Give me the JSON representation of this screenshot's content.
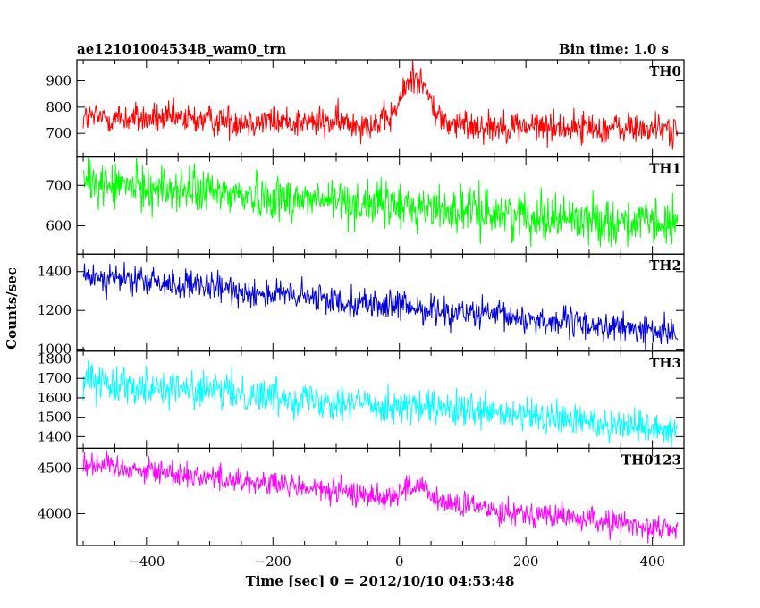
{
  "title_left": "ae121010045348_wam0_trn",
  "title_right": "Bin time: 1.0 s",
  "ylabel": "Counts/sec",
  "xlabel": "Time [sec] 0 = 2012/10/10 04:53:48",
  "chart_data": {
    "type": "line",
    "x_range": [
      -510,
      450
    ],
    "x_ticks": [
      -400,
      -200,
      0,
      200,
      400
    ],
    "x_tick_labels": [
      "−400",
      "−200",
      "0",
      "200",
      "400"
    ],
    "x_data_range": [
      -500,
      440
    ],
    "bin_time_s": 1.0,
    "panels": [
      {
        "name": "TH0",
        "color": "#ff0000",
        "ylim": [
          610,
          980
        ],
        "y_ticks": [
          700,
          800,
          900
        ],
        "y_tick_labels": [
          "700",
          "800",
          "900"
        ],
        "baseline_start": 760,
        "baseline_end": 715,
        "noise": 30,
        "burst": {
          "center": 25,
          "width": 28,
          "peak": 920
        }
      },
      {
        "name": "TH1",
        "color": "#00ff00",
        "ylim": [
          530,
          770
        ],
        "y_ticks": [
          600,
          700
        ],
        "y_tick_labels": [
          "600",
          "700"
        ],
        "baseline_start": 705,
        "baseline_end": 600,
        "noise": 28,
        "burst": null
      },
      {
        "name": "TH2",
        "color": "#0000dd",
        "ylim": [
          990,
          1490
        ],
        "y_ticks": [
          1000,
          1200,
          1400
        ],
        "y_tick_labels": [
          "1000",
          "1200",
          "1400"
        ],
        "baseline_start": 1380,
        "baseline_end": 1080,
        "noise": 38,
        "burst": null
      },
      {
        "name": "TH3",
        "color": "#00ffff",
        "ylim": [
          1340,
          1840
        ],
        "y_ticks": [
          1400,
          1500,
          1600,
          1700,
          1800
        ],
        "y_tick_labels": [
          "1400",
          "1500",
          "1600",
          "1700",
          "1800"
        ],
        "baseline_start": 1690,
        "baseline_end": 1440,
        "noise": 45,
        "burst": null
      },
      {
        "name": "TH0123",
        "color": "#ff00ff",
        "ylim": [
          3650,
          4720
        ],
        "y_ticks": [
          4000,
          4500
        ],
        "y_tick_labels": [
          "4000",
          "4500"
        ],
        "baseline_start": 4560,
        "baseline_end": 3820,
        "noise": 70,
        "burst": {
          "center": 25,
          "width": 28,
          "peak": 4300
        }
      }
    ]
  }
}
